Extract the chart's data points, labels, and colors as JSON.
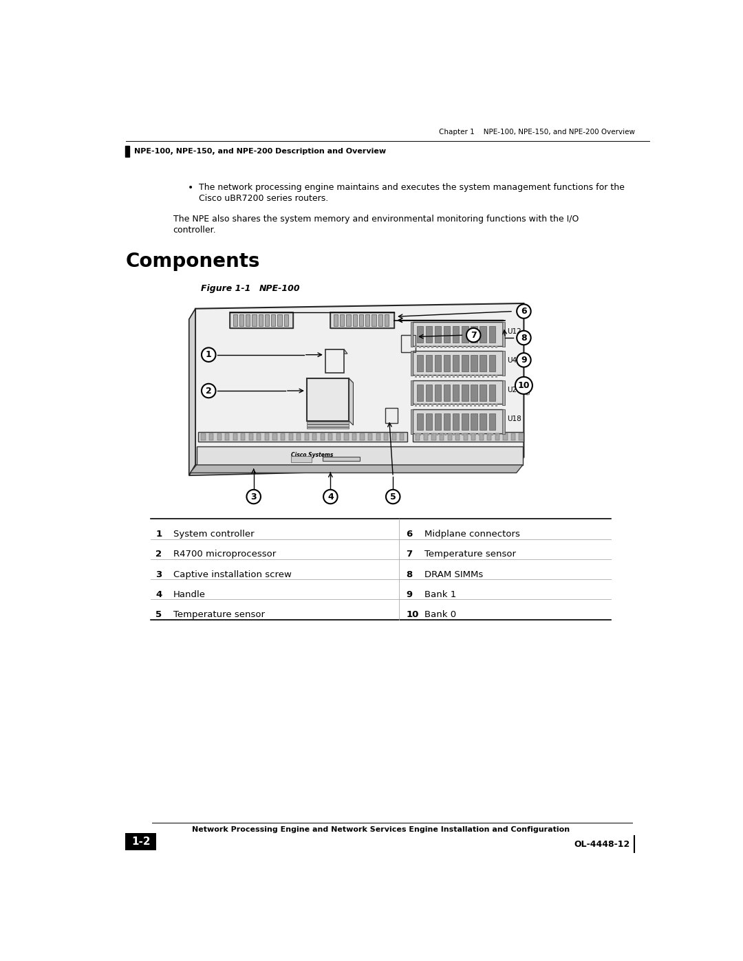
{
  "page_width": 10.8,
  "page_height": 13.97,
  "bg_color": "#ffffff",
  "header_top_text_right": "Chapter 1    NPE-100, NPE-150, and NPE-200 Overview",
  "header_bottom_text": "NPE-100, NPE-150, and NPE-200 Description and Overview",
  "bullet_text_line1": "The network processing engine maintains and executes the system management functions for the",
  "bullet_text_line2": "Cisco uBR7200 series routers.",
  "para_text_line1": "The NPE also shares the system memory and environmental monitoring functions with the I/O",
  "para_text_line2": "controller.",
  "section_title": "Components",
  "figure_label": "Figure 1-1",
  "figure_title": "NPE-100",
  "table_rows": [
    {
      "num": "1",
      "left_label": "System controller",
      "num2": "6",
      "right_label": "Midplane connectors"
    },
    {
      "num": "2",
      "left_label": "R4700 microprocessor",
      "num2": "7",
      "right_label": "Temperature sensor"
    },
    {
      "num": "3",
      "left_label": "Captive installation screw",
      "num2": "8",
      "right_label": "DRAM SIMMs"
    },
    {
      "num": "4",
      "left_label": "Handle",
      "num2": "9",
      "right_label": "Bank 1"
    },
    {
      "num": "5",
      "left_label": "Temperature sensor",
      "num2": "10",
      "right_label": "Bank 0"
    }
  ],
  "footer_left_box": "1-2",
  "footer_text": "Network Processing Engine and Network Services Engine Installation and Configuration",
  "footer_right": "OL-4448-12"
}
